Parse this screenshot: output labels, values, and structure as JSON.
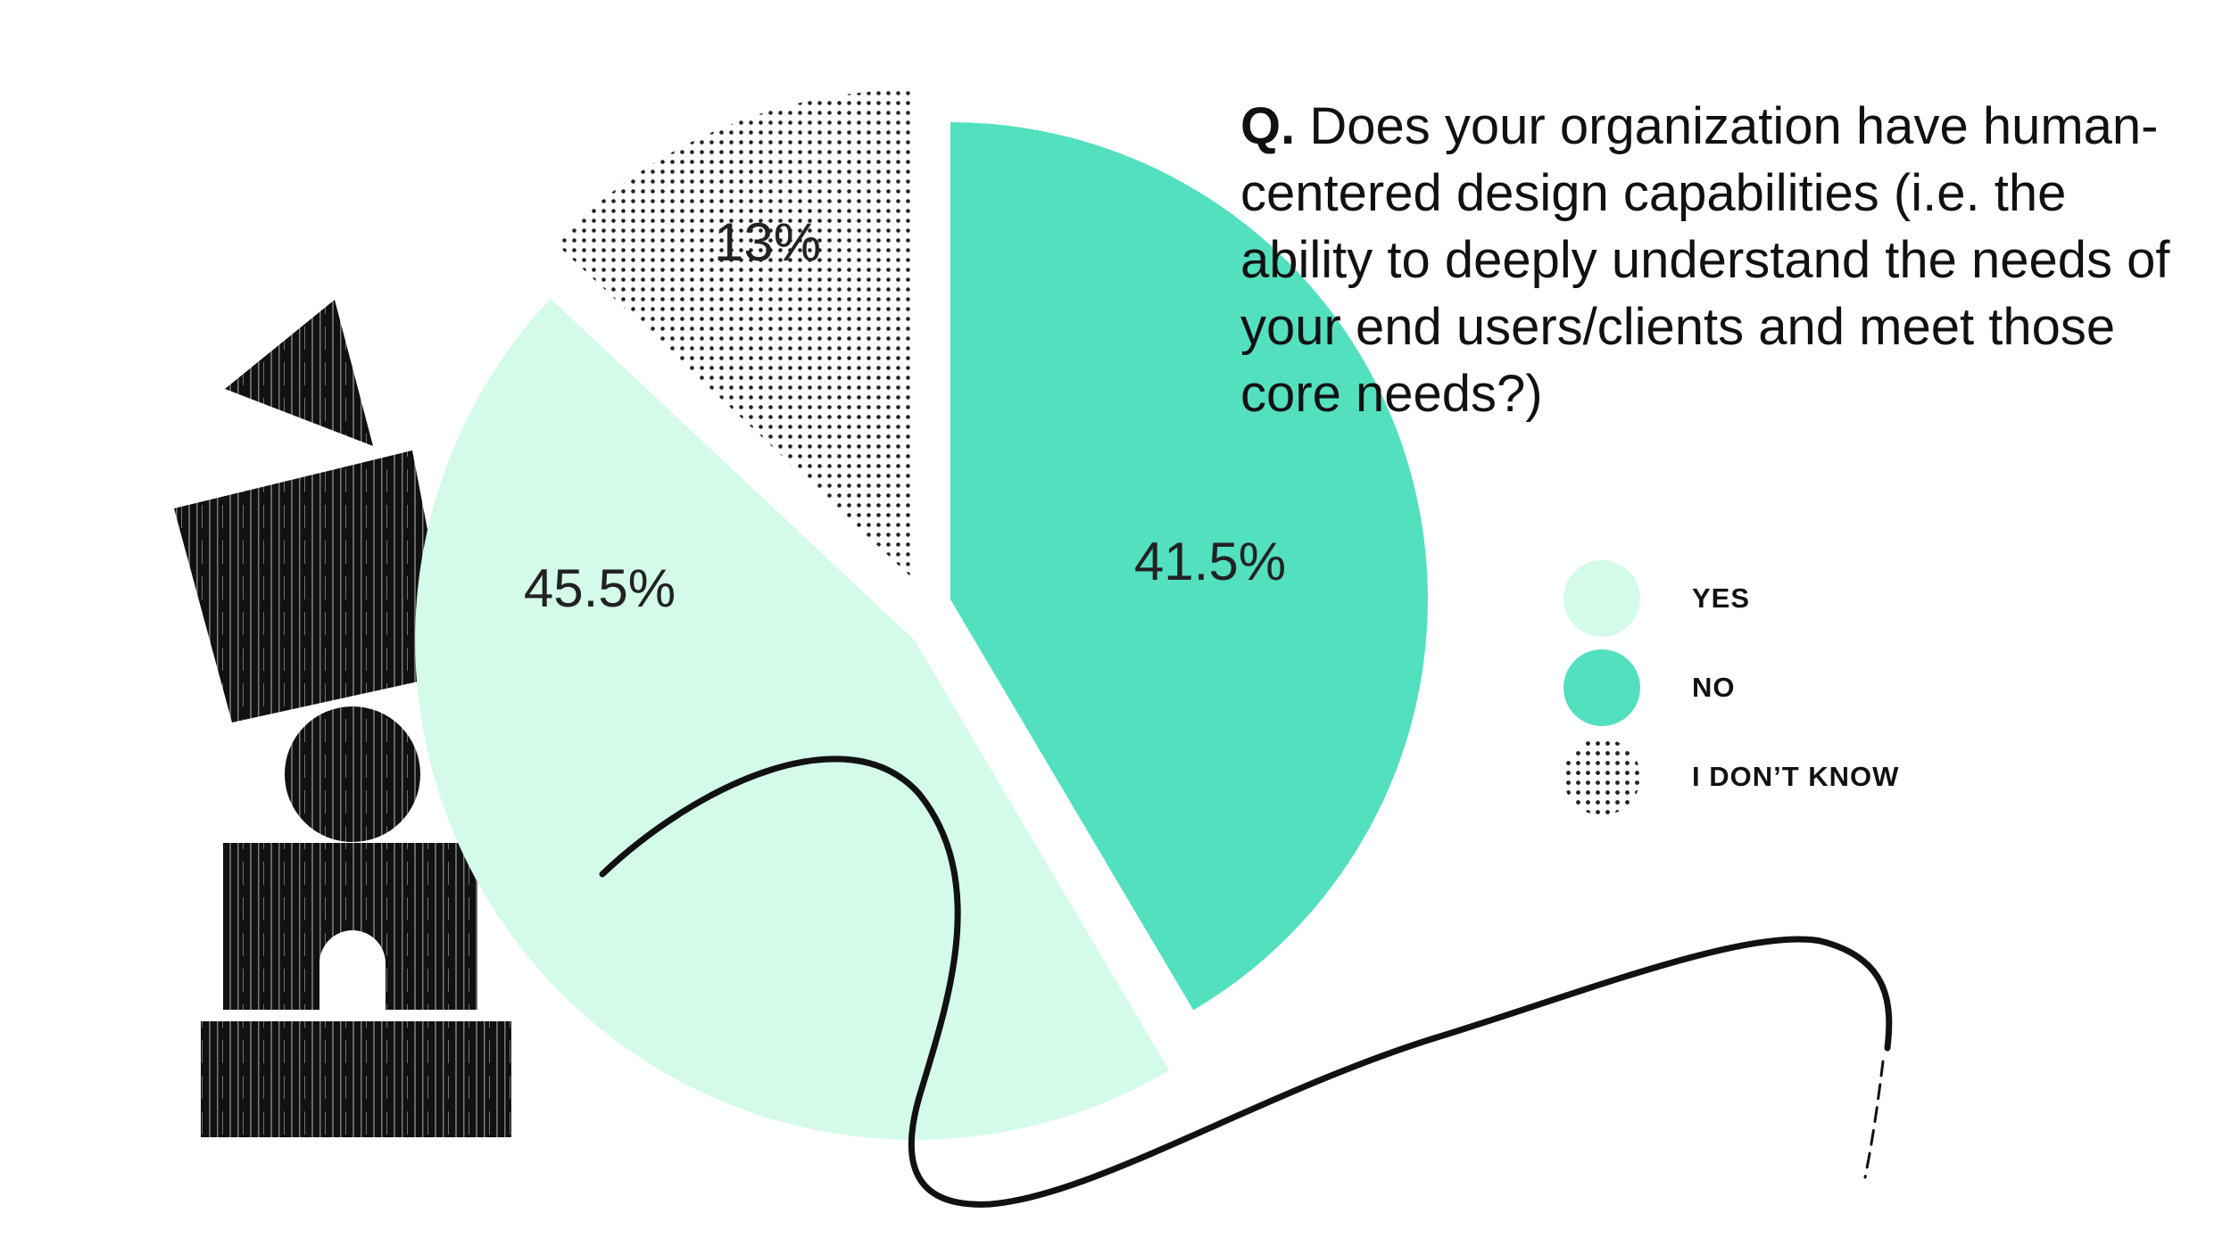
{
  "question": {
    "prefix": "Q.",
    "text": "Does your organization have human-centered design capabilities (i.e. the ability to deeply understand the needs of your end users/clients and meet those core needs?)"
  },
  "chart_data": {
    "type": "pie",
    "title": "Q. Does your organization have human-centered design capabilities (i.e. the ability to deeply understand the needs of your end users/clients and meet those core needs?)",
    "categories": [
      "YES",
      "NO",
      "I DON’T KNOW"
    ],
    "values": [
      45.5,
      41.5,
      13
    ],
    "value_labels": [
      "45.5%",
      "41.5%",
      "13%"
    ],
    "unit": "%",
    "colors": {
      "YES": "#d4fbe9",
      "NO": "#52e0bf",
      "I DON’T KNOW": "dotted-pattern"
    },
    "legend_position": "right"
  },
  "colors": {
    "yes": "#d4fbe9",
    "no": "#52e0bf",
    "dots": "#222222",
    "decor": "#111111"
  }
}
